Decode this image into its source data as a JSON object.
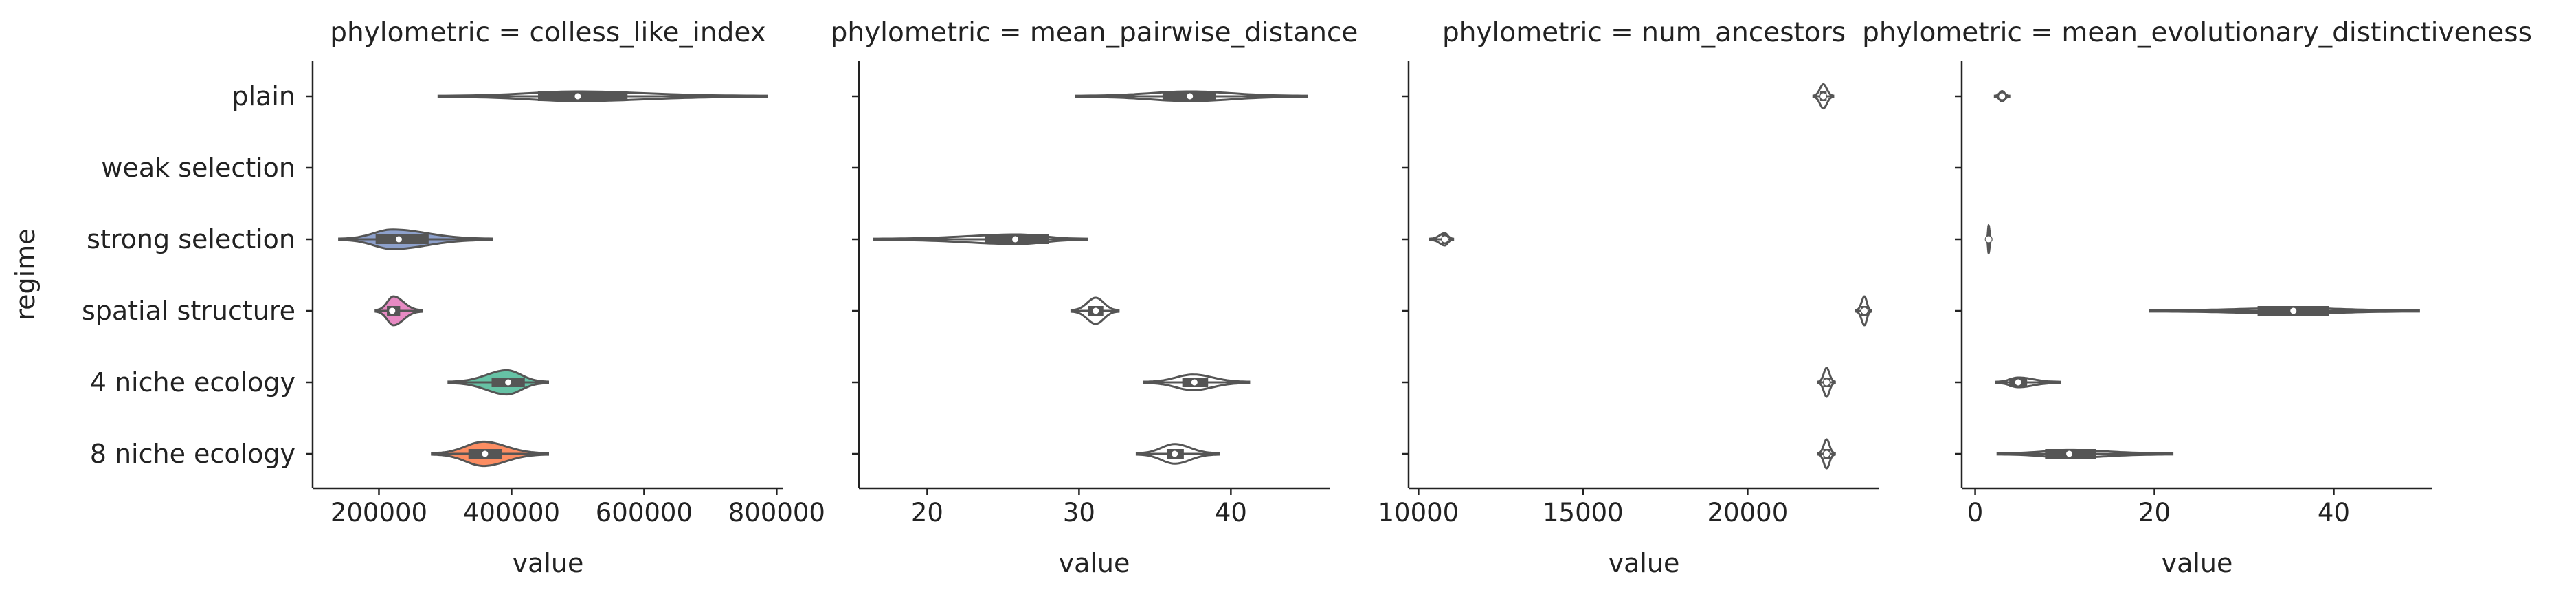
{
  "figure": {
    "shared_ylabel": "regime",
    "categories": [
      "plain",
      "weak selection",
      "strong selection",
      "spatial structure",
      "4 niche ecology",
      "8 niche ecology"
    ],
    "colors": {
      "plain": "#66c2a5",
      "weak selection": "#fc8d62",
      "strong selection": "#8da0cb",
      "spatial structure": "#e78ac3",
      "4 niche ecology": "#66c2a5",
      "8 niche ecology": "#fc8d62",
      "outline": "#555555",
      "median": "#ffffff",
      "text": "#222222"
    }
  },
  "chart_data": [
    {
      "type": "violin",
      "title": "phylometric = colless_like_index",
      "xlabel": "value",
      "ylabel": "regime",
      "xlim": [
        100000,
        810000
      ],
      "xticks": [
        200000,
        400000,
        600000,
        800000
      ],
      "xtick_labels": [
        "200000",
        "400000",
        "600000",
        "800000"
      ],
      "series": [
        {
          "category": "plain",
          "min": 290000,
          "q1": 440000,
          "median": 500000,
          "q3": 575000,
          "max": 785000,
          "peak": 500000,
          "halfwidth": 0.13,
          "filled": false
        },
        {
          "category": "weak selection",
          "empty": true
        },
        {
          "category": "strong selection",
          "min": 140000,
          "q1": 195000,
          "median": 230000,
          "q3": 275000,
          "max": 370000,
          "peak": 220000,
          "halfwidth": 0.28,
          "filled": true
        },
        {
          "category": "spatial structure",
          "min": 195000,
          "q1": 212000,
          "median": 220000,
          "q3": 232000,
          "max": 265000,
          "peak": 222000,
          "halfwidth": 0.42,
          "filled": true
        },
        {
          "category": "4 niche ecology",
          "min": 305000,
          "q1": 370000,
          "median": 395000,
          "q3": 420000,
          "max": 455000,
          "peak": 393000,
          "halfwidth": 0.35,
          "filled": true
        },
        {
          "category": "8 niche ecology",
          "min": 280000,
          "q1": 335000,
          "median": 360000,
          "q3": 385000,
          "max": 455000,
          "peak": 358000,
          "halfwidth": 0.35,
          "filled": true
        }
      ]
    },
    {
      "type": "violin",
      "title": "phylometric = mean_pairwise_distance",
      "xlabel": "value",
      "xlim": [
        15.5,
        46.5
      ],
      "xticks": [
        20,
        30,
        40
      ],
      "xtick_labels": [
        "20",
        "30",
        "40"
      ],
      "series": [
        {
          "category": "plain",
          "min": 29.8,
          "q1": 35.5,
          "median": 37.3,
          "q3": 39.0,
          "max": 45.0,
          "peak": 37.3,
          "halfwidth": 0.13,
          "filled": false
        },
        {
          "category": "weak selection",
          "empty": true
        },
        {
          "category": "strong selection",
          "min": 16.5,
          "q1": 23.8,
          "median": 25.8,
          "q3": 28.0,
          "max": 30.5,
          "peak": 26.0,
          "halfwidth": 0.13,
          "filled": false
        },
        {
          "category": "spatial structure",
          "min": 29.5,
          "q1": 30.6,
          "median": 31.1,
          "q3": 31.6,
          "max": 32.6,
          "peak": 31.1,
          "halfwidth": 0.38,
          "filled": false
        },
        {
          "category": "4 niche ecology",
          "min": 34.3,
          "q1": 36.8,
          "median": 37.6,
          "q3": 38.5,
          "max": 41.2,
          "peak": 37.5,
          "halfwidth": 0.22,
          "filled": false
        },
        {
          "category": "8 niche ecology",
          "min": 33.8,
          "q1": 35.8,
          "median": 36.3,
          "q3": 36.9,
          "max": 39.2,
          "peak": 36.3,
          "halfwidth": 0.28,
          "filled": false
        }
      ]
    },
    {
      "type": "violin",
      "title": "phylometric = num_ancestors",
      "xlabel": "value",
      "xlim": [
        9700,
        24000
      ],
      "xticks": [
        10000,
        15000,
        20000
      ],
      "xtick_labels": [
        "10000",
        "15000",
        "20000"
      ],
      "series": [
        {
          "category": "plain",
          "min": 22000,
          "q1": 22200,
          "median": 22300,
          "q3": 22400,
          "max": 22600,
          "peak": 22300,
          "halfwidth": 0.35,
          "filled": false
        },
        {
          "category": "weak selection",
          "empty": true
        },
        {
          "category": "strong selection",
          "min": 10350,
          "q1": 10700,
          "median": 10800,
          "q3": 10900,
          "max": 11050,
          "peak": 10800,
          "halfwidth": 0.17,
          "filled": false
        },
        {
          "category": "spatial structure",
          "min": 23300,
          "q1": 23450,
          "median": 23550,
          "q3": 23650,
          "max": 23750,
          "peak": 23550,
          "halfwidth": 0.42,
          "filled": false
        },
        {
          "category": "4 niche ecology",
          "min": 22150,
          "q1": 22300,
          "median": 22400,
          "q3": 22500,
          "max": 22650,
          "peak": 22400,
          "halfwidth": 0.42,
          "filled": false
        },
        {
          "category": "8 niche ecology",
          "min": 22150,
          "q1": 22300,
          "median": 22400,
          "q3": 22500,
          "max": 22650,
          "peak": 22400,
          "halfwidth": 0.42,
          "filled": false
        }
      ]
    },
    {
      "type": "violin",
      "title": "phylometric = mean_evolutionary_distinctiveness",
      "xlabel": "value",
      "xlim": [
        -1.5,
        51
      ],
      "xticks": [
        0,
        20,
        40
      ],
      "xtick_labels": [
        "0",
        "20",
        "40"
      ],
      "series": [
        {
          "category": "plain",
          "min": 2.2,
          "q1": 2.7,
          "median": 3.0,
          "q3": 3.3,
          "max": 3.8,
          "peak": 3.0,
          "halfwidth": 0.14,
          "filled": false
        },
        {
          "category": "weak selection",
          "empty": true
        },
        {
          "category": "strong selection",
          "min": 1.3,
          "q1": 1.4,
          "median": 1.5,
          "q3": 1.6,
          "max": 1.8,
          "peak": 1.5,
          "halfwidth": 0.4,
          "filled": false
        },
        {
          "category": "spatial structure",
          "min": 19.5,
          "q1": 31.5,
          "median": 35.5,
          "q3": 39.5,
          "max": 49.5,
          "peak": 35.5,
          "halfwidth": 0.07,
          "filled": false
        },
        {
          "category": "4 niche ecology",
          "min": 2.3,
          "q1": 3.8,
          "median": 4.8,
          "q3": 5.8,
          "max": 9.5,
          "peak": 4.8,
          "halfwidth": 0.13,
          "filled": false
        },
        {
          "category": "8 niche ecology",
          "min": 2.5,
          "q1": 7.8,
          "median": 10.5,
          "q3": 13.5,
          "max": 22.0,
          "peak": 10.5,
          "halfwidth": 0.1,
          "filled": false
        }
      ]
    }
  ]
}
